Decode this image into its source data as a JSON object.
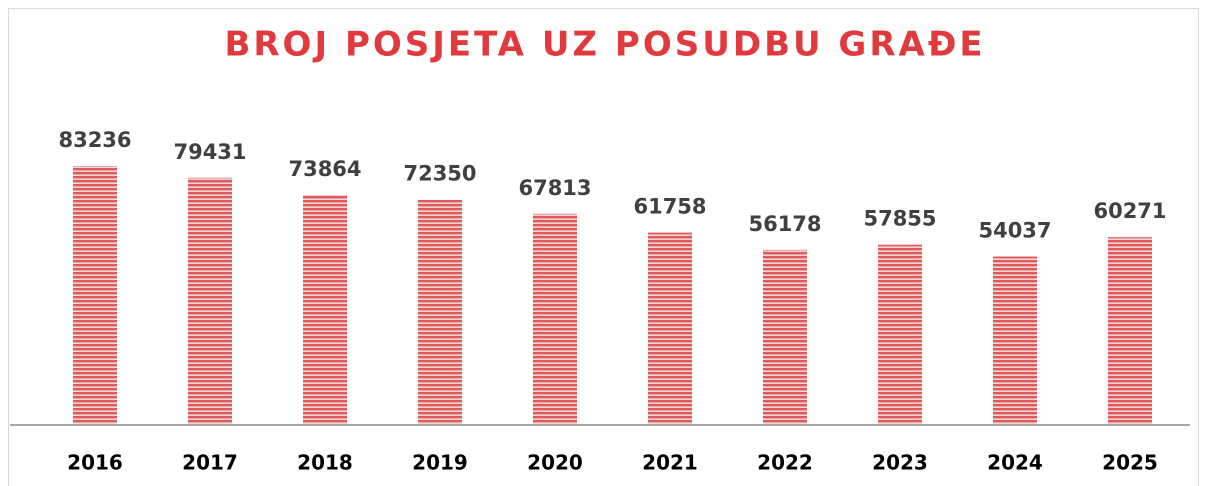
{
  "chart_data": {
    "type": "bar",
    "title": "BROJ POSJETA UZ POSUDBU GRAĐE",
    "categories": [
      "2016",
      "2017",
      "2018",
      "2019",
      "2020",
      "2021",
      "2022",
      "2023",
      "2024",
      "2025"
    ],
    "values": [
      83236,
      79431,
      73864,
      72350,
      67813,
      61758,
      56178,
      57855,
      54037,
      60271
    ],
    "color": "#e05a5c"
  }
}
